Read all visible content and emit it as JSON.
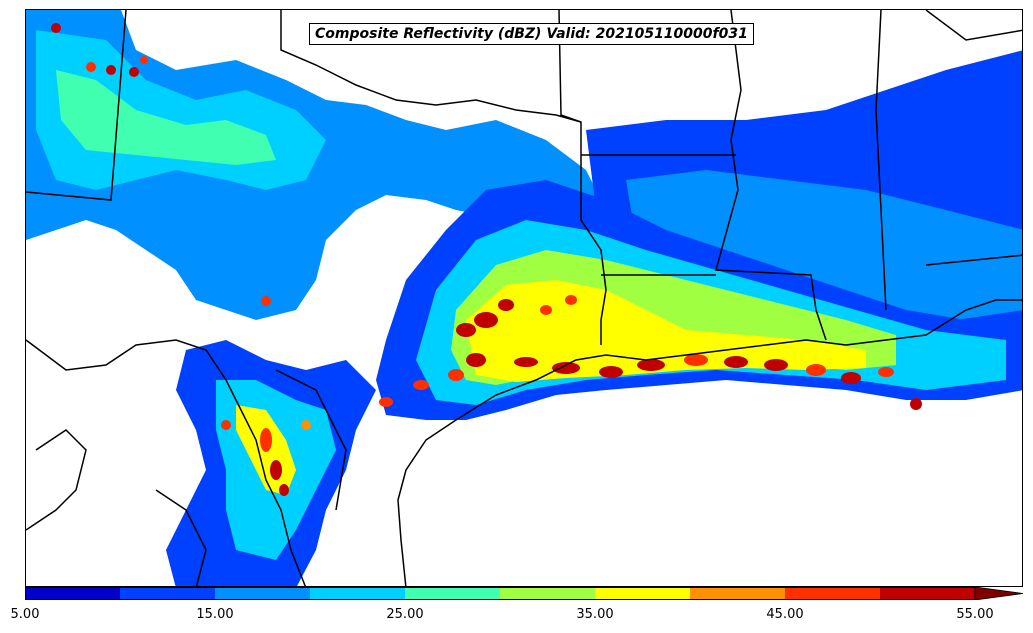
{
  "map": {
    "title": "Composite Reflectivity (dBZ) Valid: 202105110000f031",
    "variable": "Composite Reflectivity",
    "units": "dBZ",
    "valid_time": "202105110000f031",
    "features": [
      "state-borders",
      "coastline",
      "country-border"
    ]
  },
  "colorbar": {
    "extend": "max",
    "levels": [
      5,
      10,
      15,
      20,
      25,
      30,
      35,
      40,
      45,
      50,
      55
    ],
    "colors": [
      "#0000c8",
      "#0040ff",
      "#0090ff",
      "#00d0ff",
      "#40ffb0",
      "#a0ff40",
      "#ffff00",
      "#ff9000",
      "#ff3000",
      "#c00000",
      "#800000"
    ],
    "tick_labels": [
      "5.00",
      "15.00",
      "25.00",
      "35.00",
      "45.00",
      "55.00"
    ]
  },
  "echo_colors": {
    "light": "#0000c8",
    "moderate_blue": "#0040ff",
    "sky": "#0090ff",
    "cyan": "#00d0ff",
    "aqua": "#40ffb0",
    "lime": "#a0ff40",
    "yellow": "#ffff00",
    "orange": "#ff9000",
    "red": "#ff3000",
    "darkred": "#c00000"
  }
}
